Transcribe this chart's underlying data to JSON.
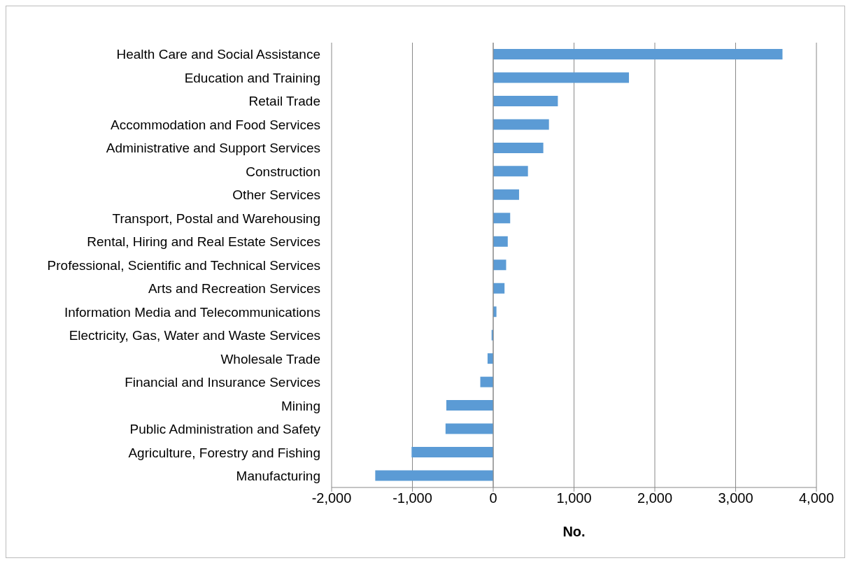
{
  "chart_data": {
    "type": "bar",
    "orientation": "horizontal",
    "xlabel": "No.",
    "categories": [
      "Health Care and Social Assistance",
      "Education and Training",
      "Retail Trade",
      "Accommodation and Food Services",
      "Administrative and Support Services",
      "Construction",
      "Other Services",
      "Transport, Postal and Warehousing",
      "Rental, Hiring and Real Estate Services",
      "Professional, Scientific and Technical Services",
      "Arts and Recreation Services",
      "Information Media and Telecommunications",
      "Electricity, Gas, Water and Waste Services",
      "Wholesale Trade",
      "Financial and Insurance Services",
      "Mining",
      "Public Administration and Safety",
      "Agriculture, Forestry and Fishing",
      "Manufacturing"
    ],
    "values": [
      3580,
      1680,
      800,
      690,
      620,
      430,
      320,
      210,
      180,
      160,
      140,
      40,
      -20,
      -70,
      -160,
      -580,
      -590,
      -1010,
      -1460
    ],
    "color": "#5b9bd5",
    "xlim": [
      -2000,
      4000
    ],
    "xticks": [
      {
        "value": -2000,
        "label": "-2,000"
      },
      {
        "value": -1000,
        "label": "-1,000"
      },
      0,
      {
        "value": 1000,
        "label": "1,000"
      },
      {
        "value": 2000,
        "label": "2,000"
      },
      {
        "value": 3000,
        "label": "3,000"
      },
      {
        "value": 4000,
        "label": "4,000"
      }
    ],
    "grid": "x"
  }
}
